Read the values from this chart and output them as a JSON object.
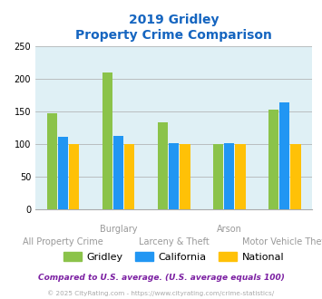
{
  "title_line1": "2019 Gridley",
  "title_line2": "Property Crime Comparison",
  "title_color": "#1565C0",
  "series": [
    "Gridley",
    "California",
    "National"
  ],
  "values": [
    [
      148,
      210,
      133,
      100,
      153
    ],
    [
      111,
      113,
      102,
      101,
      164
    ],
    [
      100,
      100,
      100,
      100,
      100
    ]
  ],
  "colors": [
    "#8BC34A",
    "#2196F3",
    "#FFC107"
  ],
  "ylim": [
    0,
    250
  ],
  "yticks": [
    0,
    50,
    100,
    150,
    200,
    250
  ],
  "grid_color": "#AAAAAA",
  "bg_color": "#DFF0F5",
  "xlabel_color": "#999999",
  "xlabel_fontsize": 7.0,
  "legend_fontsize": 8.0,
  "top_labels": [
    [
      1,
      "Burglary"
    ],
    [
      3,
      "Arson"
    ]
  ],
  "bottom_labels": [
    [
      0,
      "All Property Crime"
    ],
    [
      2,
      "Larceny & Theft"
    ],
    [
      4,
      "Motor Vehicle Theft"
    ]
  ],
  "footnote1": "Compared to U.S. average. (U.S. average equals 100)",
  "footnote2": "© 2025 CityRating.com - https://www.cityrating.com/crime-statistics/",
  "footnote1_color": "#7B1FA2",
  "footnote2_color": "#AAAAAA",
  "footnote2_link_color": "#2196F3"
}
